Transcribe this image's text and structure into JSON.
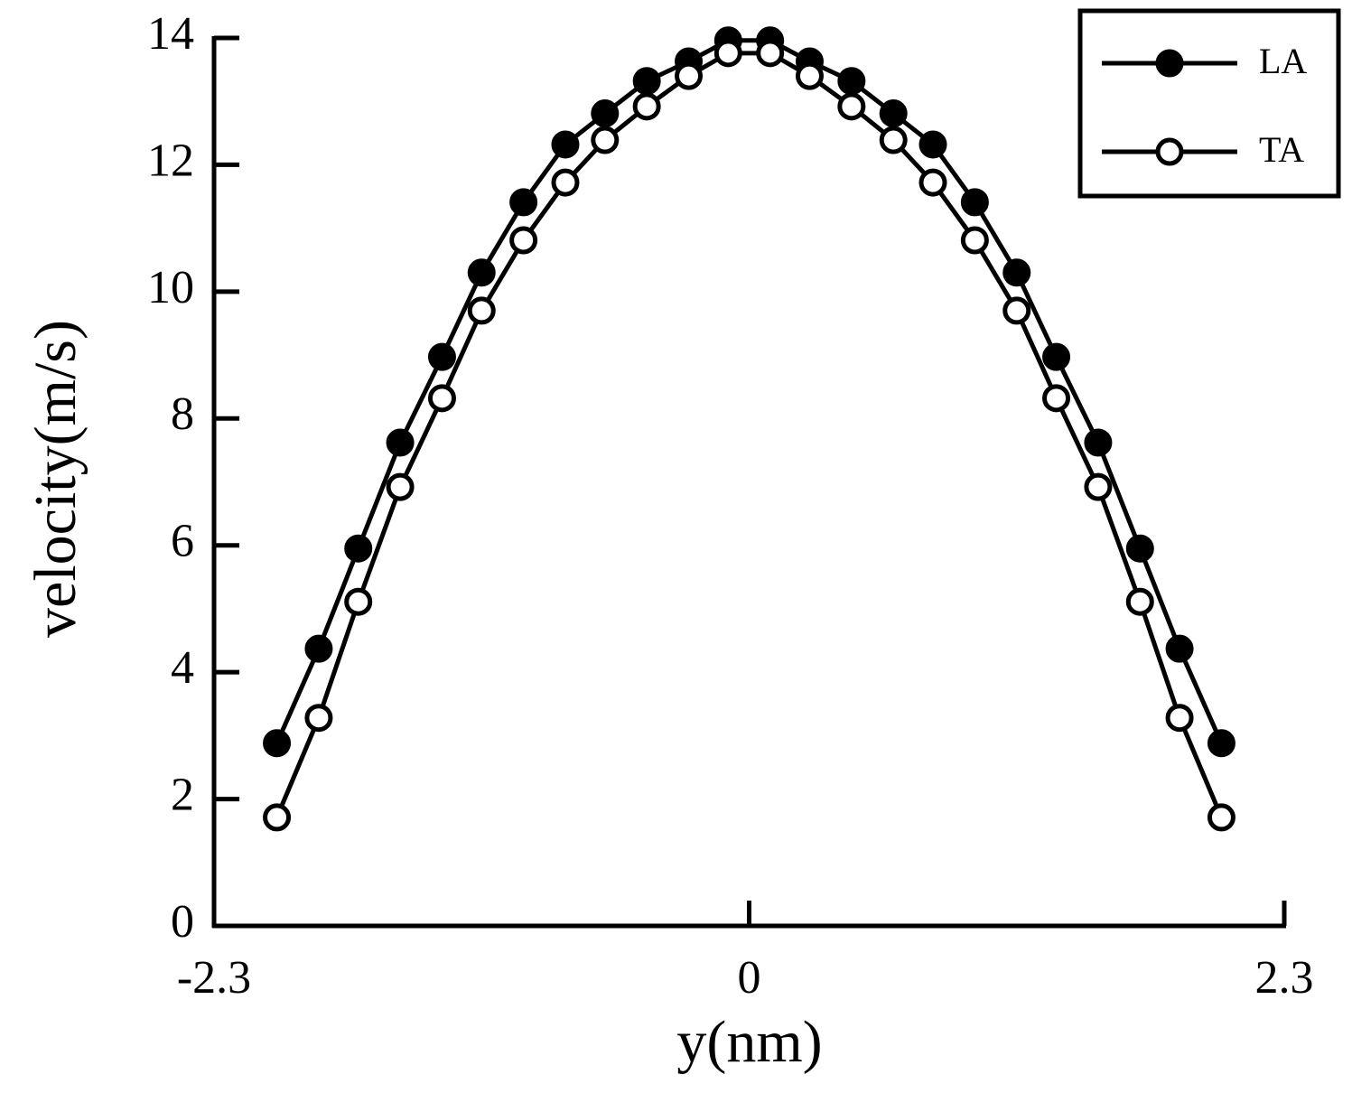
{
  "chart_data": {
    "type": "line",
    "x_label": "y(nm)",
    "y_label": "velocity(m/s)",
    "x": [
      -2.03,
      -1.85,
      -1.68,
      -1.5,
      -1.32,
      -1.15,
      -0.97,
      -0.79,
      -0.62,
      -0.44,
      -0.26,
      -0.09,
      0.09,
      0.26,
      0.44,
      0.62,
      0.79,
      0.97,
      1.15,
      1.32,
      1.5,
      1.68,
      1.85,
      2.03
    ],
    "series": [
      {
        "name": "LA",
        "color": "#000000",
        "marker_fill": "#000000",
        "values": [
          2.88,
          4.37,
          5.95,
          7.62,
          8.97,
          10.3,
          11.41,
          12.32,
          12.81,
          13.32,
          13.63,
          13.96,
          13.96,
          13.63,
          13.32,
          12.81,
          12.32,
          11.41,
          10.3,
          8.97,
          7.62,
          5.95,
          4.37,
          2.88
        ]
      },
      {
        "name": "TA",
        "color": "#000000",
        "marker_fill": "#ffffff",
        "values": [
          1.71,
          3.28,
          5.11,
          6.92,
          8.32,
          9.7,
          10.81,
          11.72,
          12.39,
          12.92,
          13.4,
          13.76,
          13.76,
          13.4,
          12.92,
          12.39,
          11.72,
          10.81,
          9.7,
          8.32,
          6.92,
          5.11,
          3.28,
          1.71
        ]
      }
    ],
    "xlim": [
      -2.3,
      2.3
    ],
    "xticks": [
      -2.3,
      0,
      2.3
    ],
    "ylim": [
      0,
      14
    ],
    "yticks": [
      0,
      2,
      4,
      6,
      8,
      10,
      12,
      14
    ],
    "legend": "upper right"
  }
}
